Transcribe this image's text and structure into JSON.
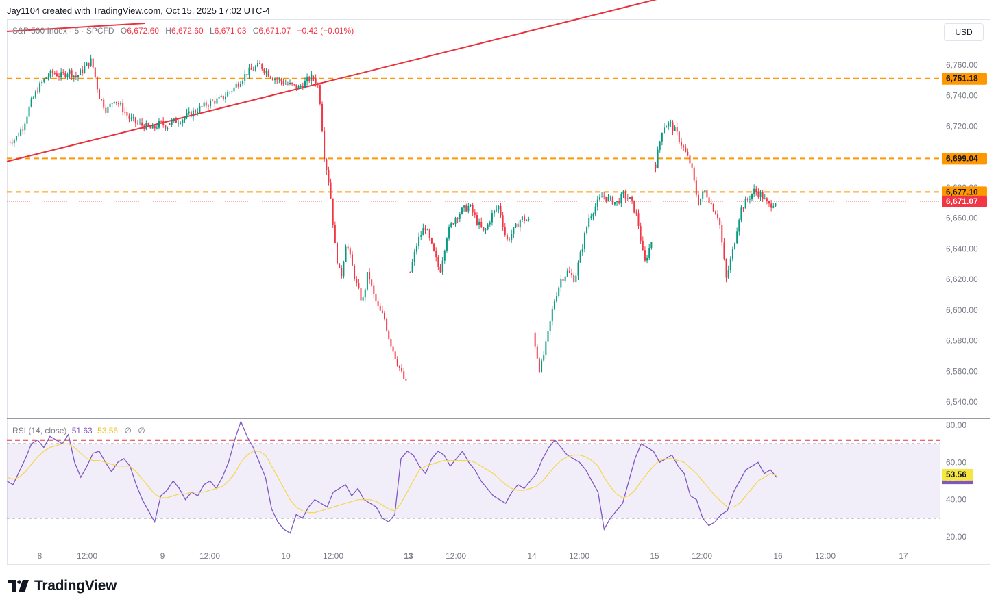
{
  "header": {
    "attribution": "Jay1104 created with TradingView.com, Oct 15, 2025 17:02 UTC-4"
  },
  "legend": {
    "symbol": "S&P 500 Index · 5 · SPCFD",
    "open_label": "O",
    "open": "6,672.60",
    "high_label": "H",
    "high": "6,672.60",
    "low_label": "L",
    "low": "6,671.03",
    "close_label": "C",
    "close": "6,671.07",
    "change": "−0.42 (−0.01%)"
  },
  "currency_button": "USD",
  "rsi_legend": {
    "name": "RSI (14, close)",
    "rsi": "51.63",
    "ma": "53.56",
    "na1": "∅",
    "na2": "∅"
  },
  "logo_text": "TradingView",
  "colors": {
    "up": "#089981",
    "down": "#f23645",
    "orange": "#ff9800",
    "trend": "#e8323c",
    "rsi": "#7e57c2",
    "rsi_ma": "#f5d64a"
  },
  "chart_data": [
    {
      "type": "candlestick",
      "title": "S&P 500 Index · 5 · SPCFD",
      "ylim": [
        6530,
        6790
      ],
      "y_ticks": [
        6540,
        6560,
        6580,
        6600,
        6620,
        6640,
        6660,
        6680,
        6700,
        6720,
        6740,
        6760
      ],
      "y_tick_labels": [
        "6,540.00",
        "6,560.00",
        "6,580.00",
        "6,600.00",
        "6,620.00",
        "6,640.00",
        "6,660.00",
        "6,680.00",
        "6,700.00",
        "6,720.00",
        "6,740.00",
        "6,760.00"
      ],
      "x_tick_labels": [
        "8",
        "12:00",
        "9",
        "12:00",
        "10",
        "12:00",
        "13",
        "12:00",
        "14",
        "12:00",
        "15",
        "12:00",
        "16",
        "12:00",
        "17"
      ],
      "horizontal_levels": [
        {
          "value": 6751.18,
          "label": "6,751.18",
          "style": "dashed",
          "color": "#ff9800"
        },
        {
          "value": 6699.04,
          "label": "6,699.04",
          "style": "dashed",
          "color": "#ff9800"
        },
        {
          "value": 6677.1,
          "label": "6,677.10",
          "style": "dashed",
          "color": "#ff9800"
        },
        {
          "value": 6671.07,
          "label": "6,671.07",
          "style": "dotted",
          "color": "#f23645"
        }
      ],
      "trendlines": [
        {
          "from": [
            "Oct 8 open",
            6697
          ],
          "to": [
            "Oct 16 ~00:00",
            6823
          ]
        },
        {
          "from": [
            "before Oct 8",
            6814
          ],
          "to": [
            "Oct 8 ~08:00",
            6816
          ]
        }
      ],
      "sessions": [
        {
          "day": "Oct 8",
          "path": [
            6710,
            6712,
            6720,
            6735,
            6745,
            6752,
            6755,
            6753,
            6756,
            6752,
            6758,
            6763,
            6740,
            6730,
            6738,
            6732,
            6725,
            6722,
            6720,
            6718,
            6722,
            6720
          ]
        },
        {
          "day": "Oct 9",
          "path": [
            6722,
            6725,
            6730,
            6735,
            6738,
            6745,
            6755,
            6760,
            6752,
            6748,
            6745,
            6752
          ]
        },
        {
          "day": "Oct 10",
          "path": [
            6752,
            6745,
            6700,
            6680,
            6640,
            6620,
            6645,
            6630,
            6615,
            6605,
            6625,
            6610,
            6600,
            6595,
            6580,
            6570,
            6560,
            6552
          ]
        },
        {
          "day": "Oct 13",
          "path": [
            6625,
            6645,
            6655,
            6640,
            6625,
            6650,
            6660,
            6665,
            6668,
            6658,
            6650,
            6662,
            6668,
            6645,
            6652,
            6660,
            6658
          ]
        },
        {
          "day": "Oct 14",
          "path": [
            6585,
            6560,
            6580,
            6605,
            6620,
            6625,
            6620,
            6640,
            6660,
            6668,
            6675,
            6672,
            6670,
            6675,
            6672,
            6660,
            6630,
            6645
          ]
        },
        {
          "day": "Oct 15",
          "path": [
            6695,
            6720,
            6722,
            6715,
            6705,
            6695,
            6670,
            6678,
            6668,
            6660,
            6620,
            6640,
            6665,
            6672,
            6678,
            6675,
            6668,
            6671
          ]
        }
      ]
    },
    {
      "type": "line",
      "title": "RSI (14, close)",
      "ylim": [
        15,
        85
      ],
      "y_ticks": [
        20,
        40,
        60,
        80
      ],
      "y_tick_labels": [
        "20.00",
        "40.00",
        "60.00",
        "80.00"
      ],
      "overbought": 70,
      "middle": 50,
      "oversold": 30,
      "red_level": 72,
      "series": [
        {
          "name": "RSI",
          "last": 51.63,
          "color": "#7e57c2",
          "values": [
            50,
            48,
            55,
            62,
            70,
            72,
            68,
            74,
            72,
            70,
            75,
            60,
            52,
            58,
            65,
            66,
            60,
            55,
            60,
            62,
            58,
            48,
            40,
            34,
            28,
            42,
            45,
            50,
            46,
            40,
            44,
            42,
            48,
            50,
            46,
            52,
            60,
            72,
            82,
            74,
            68,
            60,
            52,
            35,
            28,
            24,
            22,
            32,
            30,
            36,
            40,
            38,
            36,
            44,
            46,
            48,
            42,
            46,
            40,
            38,
            36,
            30,
            28,
            32,
            62,
            66,
            64,
            58,
            54,
            62,
            66,
            64,
            58,
            62,
            66,
            60,
            56,
            50,
            46,
            42,
            40,
            38,
            44,
            48,
            46,
            50,
            54,
            62,
            68,
            72,
            68,
            64,
            62,
            60,
            56,
            50,
            44,
            24,
            30,
            34,
            38,
            50,
            62,
            70,
            68,
            66,
            60,
            62,
            64,
            58,
            54,
            42,
            40,
            30,
            26,
            28,
            32,
            34,
            44,
            50,
            56,
            58,
            60,
            54,
            56,
            52
          ]
        },
        {
          "name": "RSI MA",
          "last": 53.56,
          "color": "#f5d64a",
          "values": [
            52,
            51,
            52,
            55,
            59,
            63,
            66,
            68,
            69,
            70,
            70,
            68,
            65,
            62,
            61,
            61,
            60,
            59,
            58,
            58,
            58,
            55,
            51,
            47,
            43,
            41,
            41,
            42,
            43,
            43,
            44,
            44,
            44,
            45,
            46,
            47,
            50,
            54,
            60,
            64,
            66,
            66,
            64,
            58,
            52,
            46,
            40,
            36,
            34,
            33,
            33,
            34,
            35,
            36,
            37,
            38,
            39,
            40,
            40,
            40,
            39,
            37,
            35,
            34,
            38,
            44,
            50,
            56,
            58,
            59,
            60,
            61,
            61,
            61,
            61,
            61,
            60,
            58,
            56,
            54,
            51,
            48,
            46,
            45,
            45,
            46,
            47,
            50,
            54,
            58,
            61,
            63,
            64,
            64,
            63,
            61,
            58,
            52,
            47,
            43,
            41,
            42,
            45,
            50,
            54,
            58,
            61,
            62,
            62,
            61,
            60,
            57,
            54,
            50,
            46,
            42,
            39,
            36,
            36,
            38,
            42,
            46,
            50,
            52,
            54,
            53
          ]
        }
      ]
    }
  ]
}
